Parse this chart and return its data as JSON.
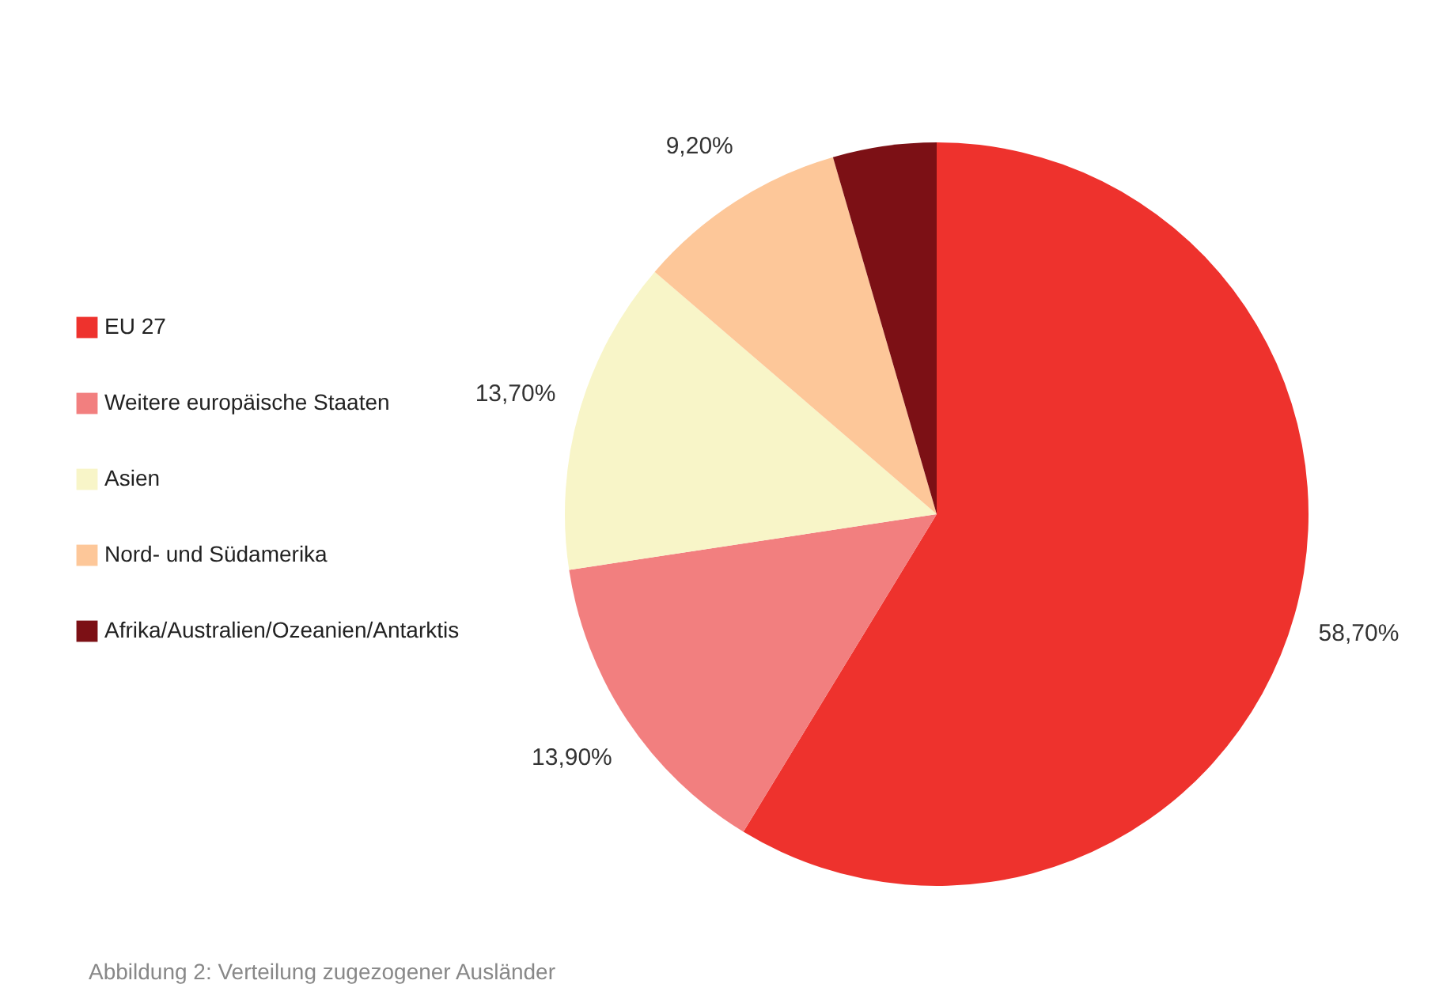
{
  "chart_data": {
    "type": "pie",
    "categories": [
      "EU 27",
      "Weitere europäische Staaten",
      "Asien",
      "Nord- und Südamerika",
      "Afrika/Australien/Ozeanien/Antarktis"
    ],
    "values": [
      58.7,
      13.9,
      13.7,
      9.2,
      4.5
    ],
    "value_labels": [
      "58,70%",
      "13,90%",
      "13,70%",
      "9,20%",
      null
    ],
    "colors": [
      "#ee322d",
      "#f27f7f",
      "#f8f5c8",
      "#fdc799",
      "#7c1015"
    ],
    "legend": "left",
    "annotations": [
      "Abbildung 2: Verteilung zugezogener Ausländer"
    ]
  }
}
